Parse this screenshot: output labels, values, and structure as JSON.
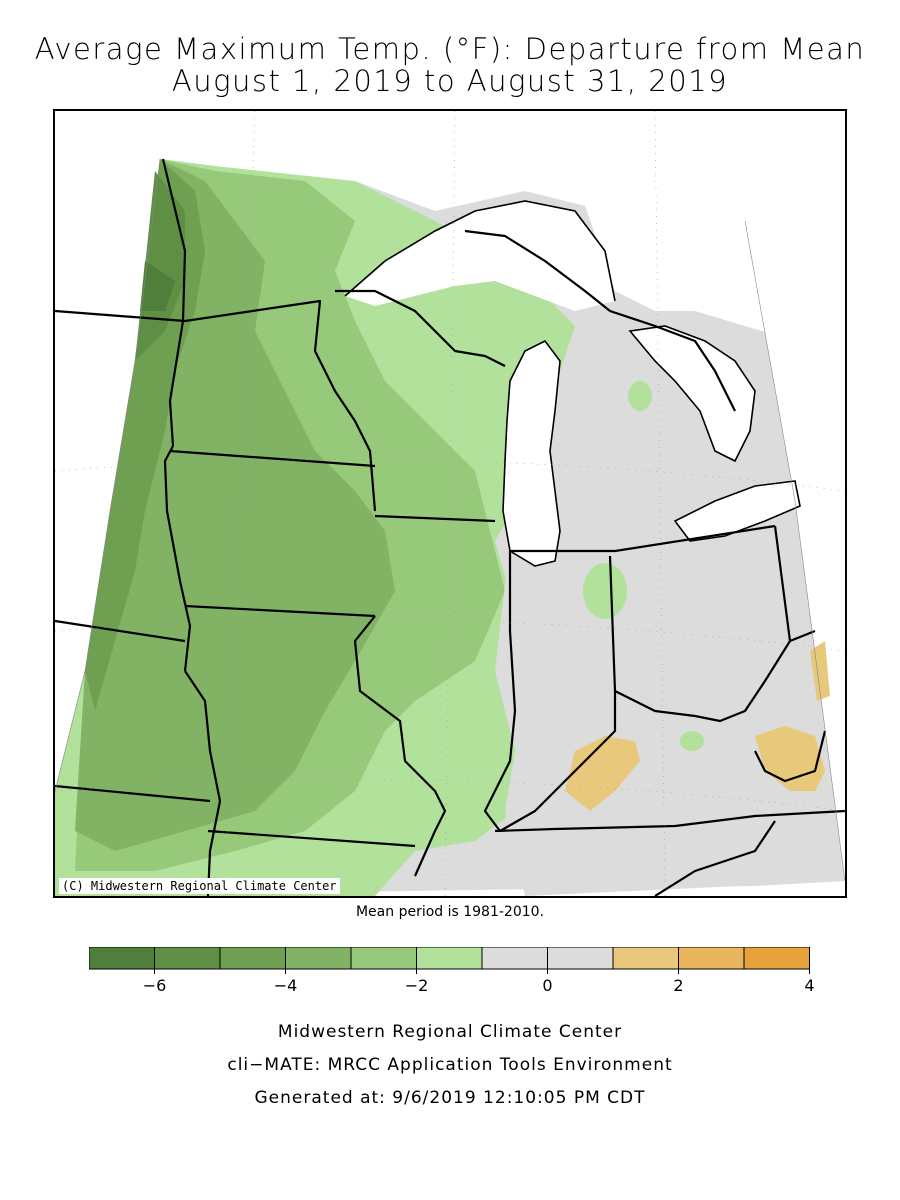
{
  "title": {
    "line1": "Average Maximum Temp. (°F): Departure from Mean",
    "line2": "August 1, 2019 to August 31, 2019"
  },
  "map": {
    "copyright": "(C) Midwestern Regional Climate Center",
    "fill_colors": {
      "lt_-6": "#4f7f3a",
      "-6_-5": "#5e8f45",
      "-5_-4": "#6fa052",
      "-4_-3": "#82b364",
      "-3_-2": "#97c97a",
      "-2_-1": "#b2e19c",
      "-1_1": "#dcdcdc",
      "1_2": "#e8c87a",
      "2_3": "#e8b45c",
      "3_4": "#e8a23c"
    }
  },
  "mean_period": "Mean period is 1981-2010.",
  "legend": {
    "bins": [
      {
        "color": "#4f7f3a"
      },
      {
        "color": "#5e8f45"
      },
      {
        "color": "#6fa052"
      },
      {
        "color": "#82b364"
      },
      {
        "color": "#97c97a"
      },
      {
        "color": "#b2e19c"
      },
      {
        "color": "#dcdcdc"
      },
      {
        "color": "#dcdcdc"
      },
      {
        "color": "#e8c87a"
      },
      {
        "color": "#e8b45c"
      },
      {
        "color": "#e8a23c"
      }
    ],
    "tick_labels": [
      "−6",
      "−4",
      "−2",
      "0",
      "2",
      "4"
    ]
  },
  "footer": {
    "line1": "Midwestern Regional Climate Center",
    "line2": "cli−MATE: MRCC Application Tools Environment",
    "line3": "Generated at: 9/6/2019 12:10:05 PM CDT"
  }
}
